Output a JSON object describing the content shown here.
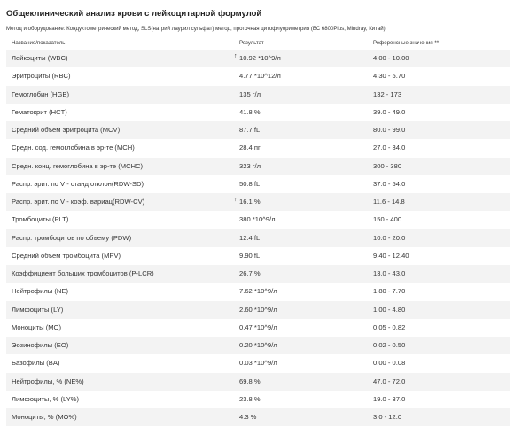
{
  "header": {
    "title": "Общеклинический анализ крови с лейкоцитарной формулой",
    "method": "Метод и оборудование: Кондуктометрический метод, SLS(натрий лаурил сульфат) метод, проточная цитофлуориметрия (ВС 6800Plus, Mindray, Китай)"
  },
  "table": {
    "columns": [
      "Название/показатель",
      "Результат",
      "Референсные значения **"
    ],
    "rows": [
      {
        "name": "Лейкоциты (WBC)",
        "result": "10.92 *10^9/л",
        "ref": "4.00 - 10.00",
        "flag": "↑"
      },
      {
        "name": "Эритроциты (RBC)",
        "result": "4.77 *10^12/л",
        "ref": "4.30 - 5.70",
        "flag": ""
      },
      {
        "name": "Гемоглобин (HGB)",
        "result": "135 г/л",
        "ref": "132 - 173",
        "flag": ""
      },
      {
        "name": "Гематокрит (HCT)",
        "result": "41.8 %",
        "ref": "39.0 - 49.0",
        "flag": ""
      },
      {
        "name": "Средний объем эритроцита (MCV)",
        "result": "87.7 fL",
        "ref": "80.0 - 99.0",
        "flag": ""
      },
      {
        "name": "Средн. сод. гемоглобина в эр-те (MCH)",
        "result": "28.4 пг",
        "ref": "27.0 - 34.0",
        "flag": ""
      },
      {
        "name": "Средн. конц. гемоглобина в эр-те (MCHC)",
        "result": "323 г/л",
        "ref": "300 - 380",
        "flag": ""
      },
      {
        "name": "Распр. эрит. по V - станд отклон(RDW-SD)",
        "result": "50.8 fL",
        "ref": "37.0 - 54.0",
        "flag": ""
      },
      {
        "name": "Распр. эрит. по V - коэф. вариац(RDW-CV)",
        "result": "16.1 %",
        "ref": "11.6 - 14.8",
        "flag": "↑"
      },
      {
        "name": "Тромбоциты (PLT)",
        "result": "380 *10^9/л",
        "ref": "150 - 400",
        "flag": ""
      },
      {
        "name": "Распр. тромбоцитов по объему (PDW)",
        "result": "12.4 fL",
        "ref": "10.0 - 20.0",
        "flag": ""
      },
      {
        "name": "Средний объем тромбоцита (MPV)",
        "result": "9.90 fL",
        "ref": "9.40 - 12.40",
        "flag": ""
      },
      {
        "name": "Коэффициент больших тромбоцитов (P-LCR)",
        "result": "26.7 %",
        "ref": "13.0 - 43.0",
        "flag": ""
      },
      {
        "name": "Нейтрофилы (NE)",
        "result": "7.62 *10^9/л",
        "ref": "1.80 - 7.70",
        "flag": ""
      },
      {
        "name": "Лимфоциты (LY)",
        "result": "2.60 *10^9/л",
        "ref": "1.00 - 4.80",
        "flag": ""
      },
      {
        "name": "Моноциты (MO)",
        "result": "0.47 *10^9/л",
        "ref": "0.05 - 0.82",
        "flag": ""
      },
      {
        "name": "Эозинофилы (EO)",
        "result": "0.20 *10^9/л",
        "ref": "0.02 - 0.50",
        "flag": ""
      },
      {
        "name": "Базофилы (BA)",
        "result": "0.03 *10^9/л",
        "ref": "0.00 - 0.08",
        "flag": ""
      },
      {
        "name": "Нейтрофилы, % (NE%)",
        "result": "69.8 %",
        "ref": "47.0 - 72.0",
        "flag": ""
      },
      {
        "name": "Лимфоциты, % (LY%)",
        "result": "23.8 %",
        "ref": "19.0 - 37.0",
        "flag": ""
      },
      {
        "name": "Моноциты, % (MO%)",
        "result": "4.3 %",
        "ref": "3.0 - 12.0",
        "flag": ""
      }
    ]
  }
}
